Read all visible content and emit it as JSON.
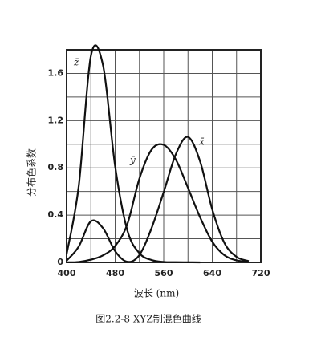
{
  "chart_data": {
    "type": "line",
    "title": "图2.2-8  XYZ制混色曲线",
    "x_label": "波长 (nm)",
    "y_label": "分布色系数",
    "x": [
      400,
      420,
      440,
      460,
      480,
      500,
      520,
      540,
      560,
      580,
      600,
      620,
      640,
      660,
      680,
      700
    ],
    "series": [
      {
        "name": "z̄",
        "color": "#111111",
        "values": [
          0.068,
          0.646,
          1.747,
          1.669,
          0.813,
          0.272,
          0.078,
          0.02,
          0.004,
          0.002,
          0.001,
          0,
          null,
          null,
          null,
          null
        ]
      },
      {
        "name": "ȳ",
        "color": "#111111",
        "values": [
          0.0004,
          0.004,
          0.023,
          0.06,
          0.139,
          0.323,
          0.71,
          0.954,
          0.995,
          0.87,
          0.631,
          0.381,
          0.175,
          0.061,
          0.017,
          0.004
        ]
      },
      {
        "name": "x̄",
        "color": "#111111",
        "values": [
          0.014,
          0.134,
          0.348,
          0.29,
          0.095,
          0.005,
          0.063,
          0.29,
          0.595,
          0.916,
          1.062,
          0.854,
          0.448,
          0.165,
          0.047,
          0.011
        ]
      }
    ],
    "xlim": [
      400,
      720
    ],
    "ylim": [
      0,
      1.8
    ],
    "xticks": [
      400,
      480,
      560,
      640,
      720
    ],
    "yticks": [
      0,
      0.4,
      0.8,
      1.2,
      1.6
    ],
    "xgrid": [
      440,
      520,
      600,
      680
    ],
    "ygrid": [
      0.2,
      0.6,
      1.0,
      1.4
    ],
    "grid": true
  }
}
